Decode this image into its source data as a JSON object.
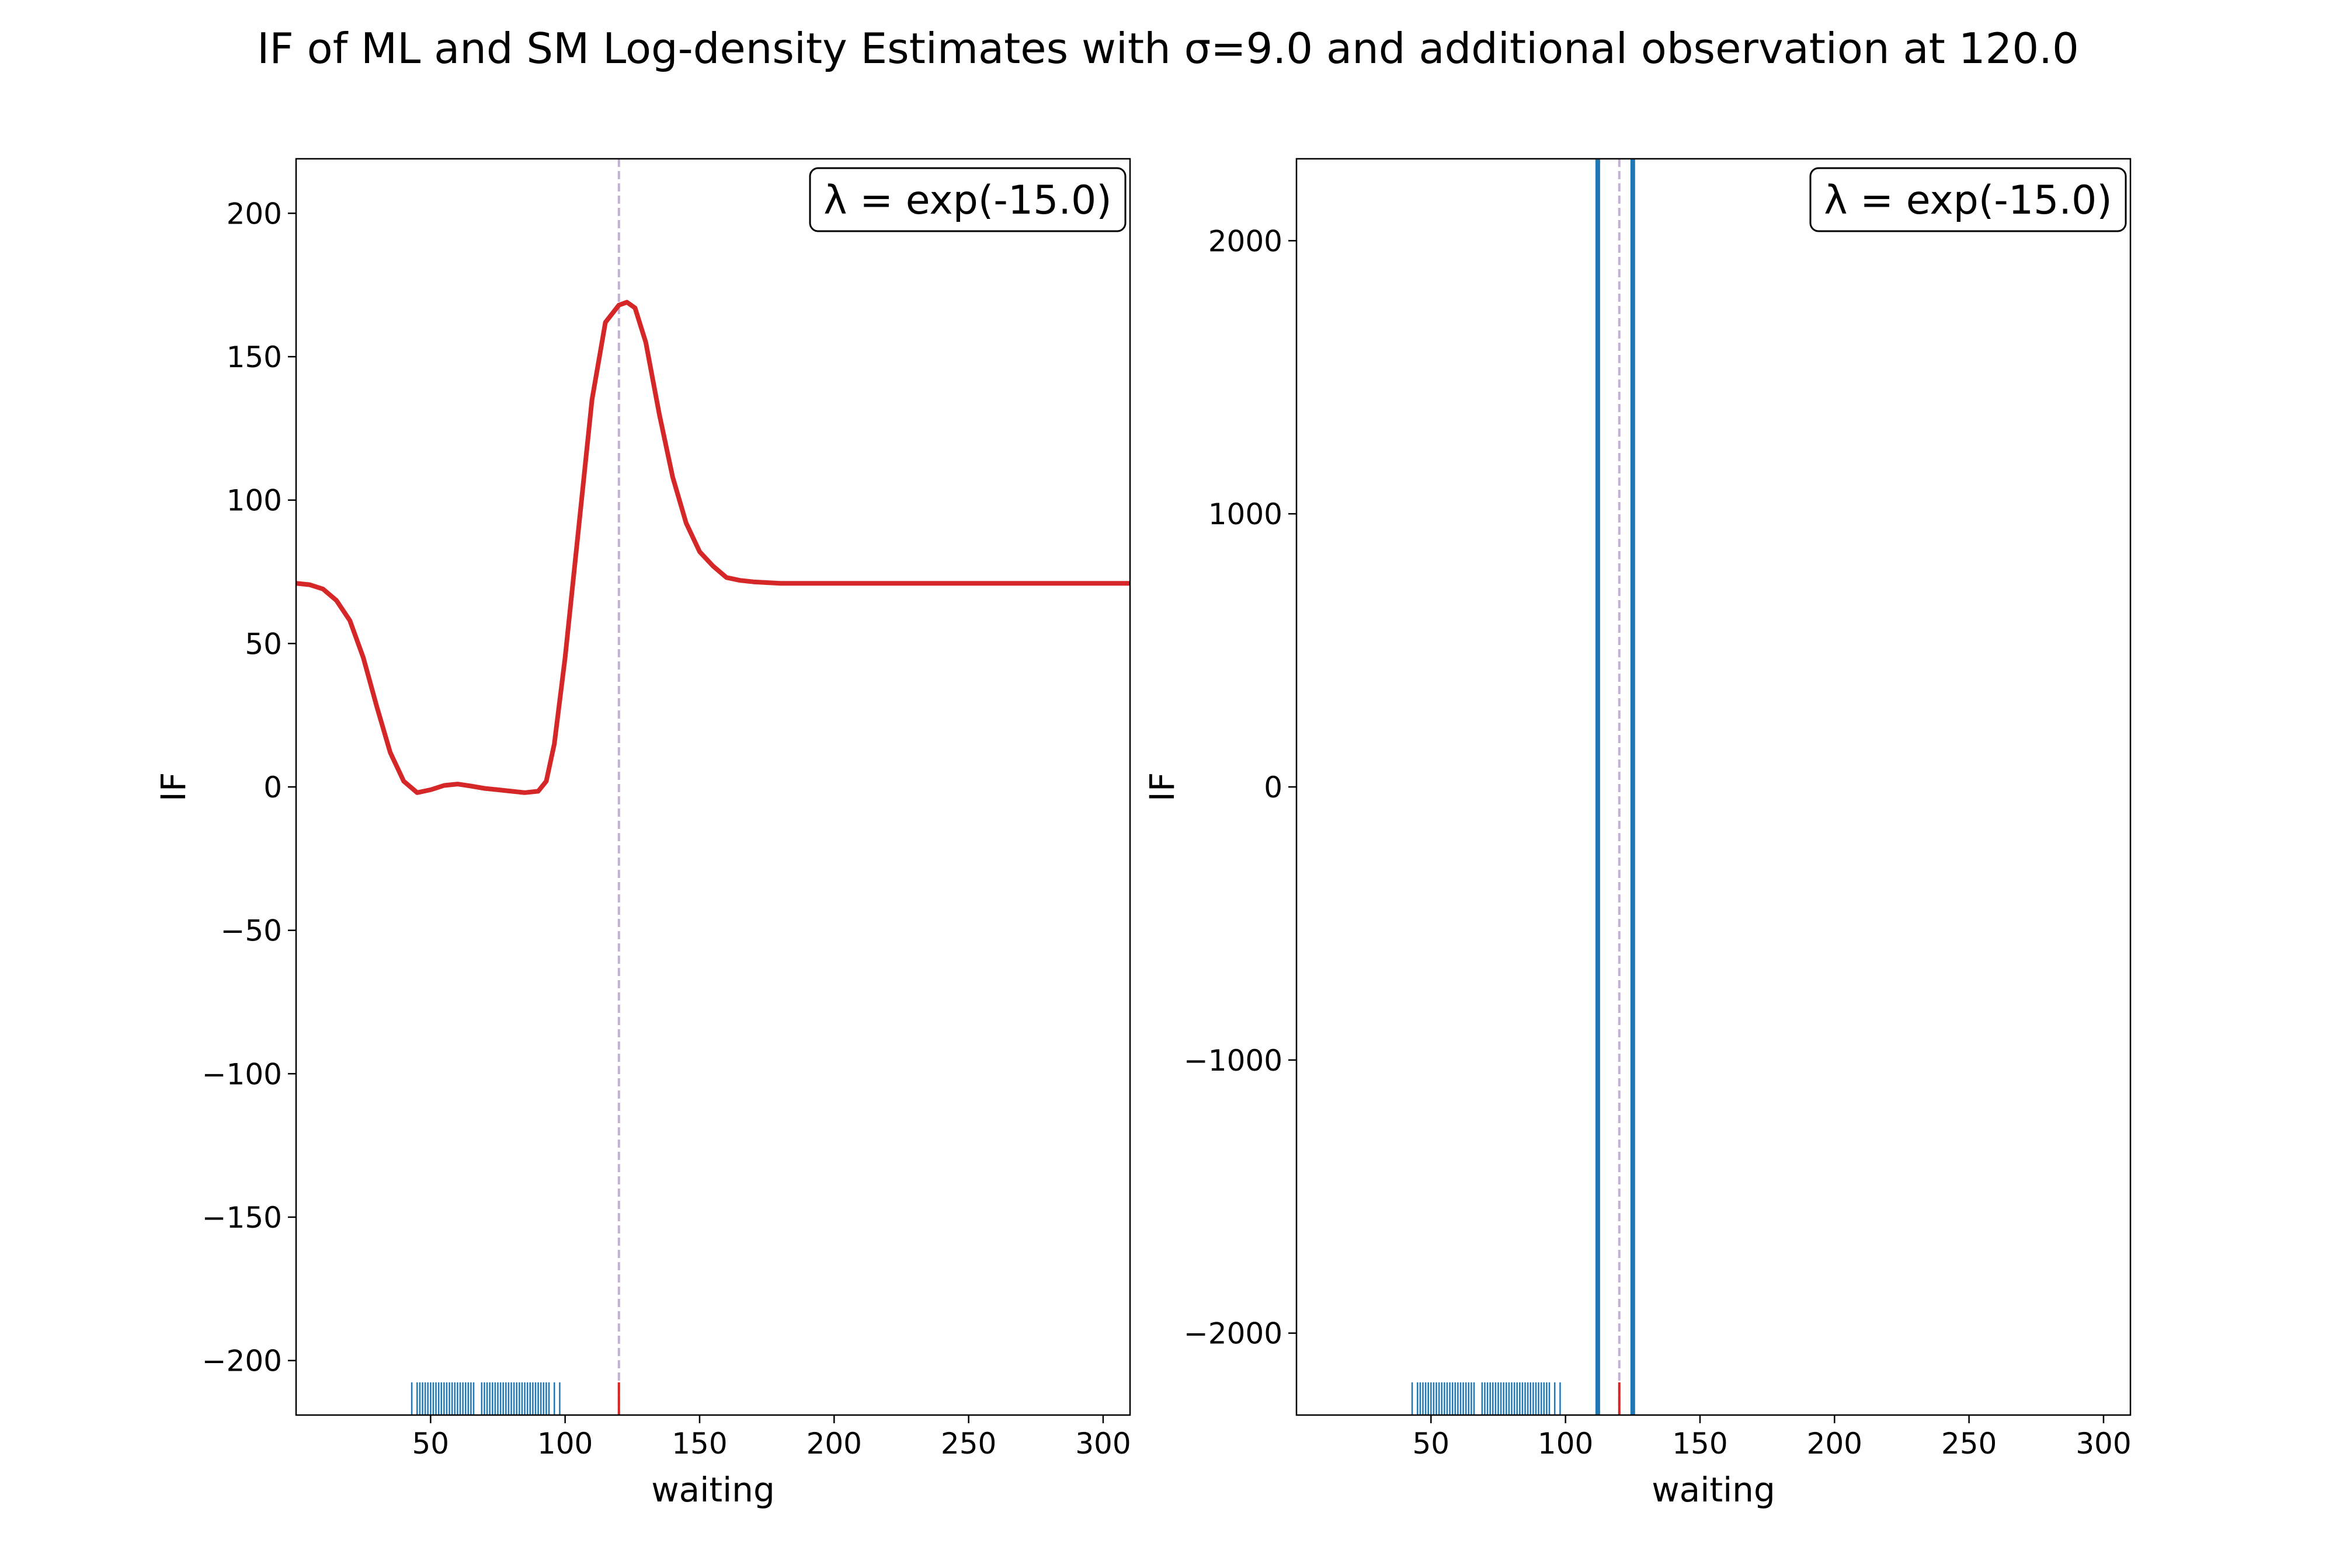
{
  "figure": {
    "title": "IF of ML and SM Log-density Estimates with σ=9.0 and additional observation at 120.0"
  },
  "colors": {
    "ml_curve": "#d62728",
    "sm_curve": "#1f77b4",
    "rug": "#1f77b4",
    "observation_rug": "#d62728",
    "observation_line": "#c5b0d5"
  },
  "chart_data": [
    {
      "type": "line",
      "name": "ML",
      "xlabel": "waiting",
      "ylabel": "IF",
      "xlim": [
        0,
        310
      ],
      "ylim": [
        -219,
        219
      ],
      "xticks": [
        50,
        100,
        150,
        200,
        250,
        300
      ],
      "yticks": [
        -200,
        -150,
        -100,
        -50,
        0,
        50,
        100,
        150,
        200
      ],
      "legend_text": "λ = exp(-15.0)",
      "legend_loc": "top-right",
      "observation": 120.0,
      "series": [
        {
          "color": "#d62728",
          "x": [
            0,
            5,
            10,
            15,
            20,
            25,
            30,
            35,
            40,
            45,
            50,
            55,
            60,
            65,
            70,
            75,
            80,
            85,
            90,
            93,
            96,
            100,
            105,
            110,
            115,
            120,
            123,
            126,
            130,
            135,
            140,
            145,
            150,
            155,
            160,
            165,
            170,
            180,
            200,
            250,
            310
          ],
          "y": [
            71,
            70.5,
            69,
            65,
            58,
            45,
            28,
            12,
            2,
            -2,
            -1,
            0.5,
            1,
            0.3,
            -0.5,
            -1,
            -1.5,
            -2,
            -1.5,
            2,
            15,
            45,
            90,
            135,
            162,
            168,
            169,
            167,
            155,
            130,
            108,
            92,
            82,
            77,
            73,
            72,
            71.5,
            71,
            71,
            71,
            71
          ]
        }
      ],
      "rug": [
        43,
        45,
        46,
        47,
        48,
        49,
        50,
        51,
        52,
        53,
        54,
        55,
        56,
        57,
        58,
        59,
        60,
        61,
        62,
        63,
        64,
        65,
        66,
        69,
        70,
        71,
        72,
        73,
        74,
        75,
        76,
        77,
        78,
        79,
        80,
        81,
        82,
        83,
        84,
        85,
        86,
        87,
        88,
        89,
        90,
        91,
        92,
        93,
        94,
        96,
        98
      ]
    },
    {
      "type": "line",
      "name": "SM",
      "xlabel": "waiting",
      "ylabel": "IF",
      "xlim": [
        0,
        310
      ],
      "ylim": [
        -2300,
        2300
      ],
      "xticks": [
        50,
        100,
        150,
        200,
        250,
        300
      ],
      "yticks": [
        -2000,
        -1000,
        0,
        1000,
        2000
      ],
      "legend_text": "λ = exp(-15.0)",
      "legend_loc": "top-right",
      "observation": 120.0,
      "series": [
        {
          "color": "#1f77b4",
          "x": [
            112,
            112
          ],
          "y": [
            -2300,
            2300
          ]
        },
        {
          "color": "#1f77b4",
          "x": [
            125,
            125
          ],
          "y": [
            -2300,
            2300
          ]
        }
      ],
      "rug": [
        43,
        45,
        46,
        47,
        48,
        49,
        50,
        51,
        52,
        53,
        54,
        55,
        56,
        57,
        58,
        59,
        60,
        61,
        62,
        63,
        64,
        65,
        66,
        69,
        70,
        71,
        72,
        73,
        74,
        75,
        76,
        77,
        78,
        79,
        80,
        81,
        82,
        83,
        84,
        85,
        86,
        87,
        88,
        89,
        90,
        91,
        92,
        93,
        94,
        96,
        98
      ]
    }
  ]
}
